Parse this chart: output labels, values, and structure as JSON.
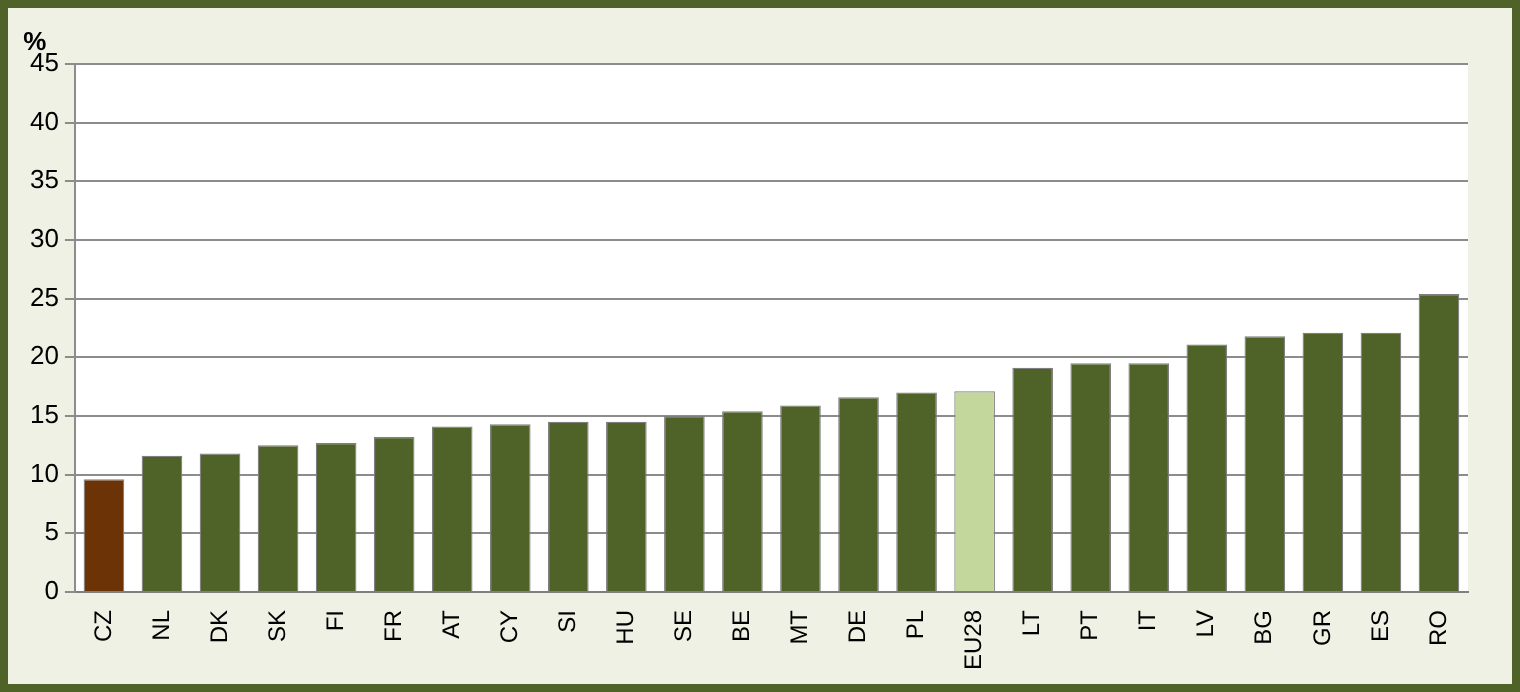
{
  "chart_data": {
    "type": "bar",
    "ylabel": "%",
    "categories": [
      "CZ",
      "NL",
      "DK",
      "SK",
      "FI",
      "FR",
      "AT",
      "CY",
      "SI",
      "HU",
      "SE",
      "BE",
      "MT",
      "DE",
      "PL",
      "EU28",
      "LT",
      "PT",
      "IT",
      "LV",
      "BG",
      "GR",
      "ES",
      "RO"
    ],
    "values": [
      9.6,
      11.6,
      11.8,
      12.5,
      12.7,
      13.2,
      14.1,
      14.3,
      14.5,
      14.5,
      15.0,
      15.4,
      15.9,
      16.6,
      17.0,
      17.1,
      19.1,
      19.5,
      19.5,
      21.1,
      21.8,
      22.1,
      22.1,
      25.4
    ],
    "colors": [
      "#6b3306",
      "#4f6228",
      "#4f6228",
      "#4f6228",
      "#4f6228",
      "#4f6228",
      "#4f6228",
      "#4f6228",
      "#4f6228",
      "#4f6228",
      "#4f6228",
      "#4f6228",
      "#4f6228",
      "#4f6228",
      "#4f6228",
      "#c3d69b",
      "#4f6228",
      "#4f6228",
      "#4f6228",
      "#4f6228",
      "#4f6228",
      "#4f6228",
      "#4f6228",
      "#4f6228"
    ],
    "ylim": [
      0,
      45
    ],
    "yticks": [
      0,
      5,
      10,
      15,
      20,
      25,
      30,
      35,
      40,
      45
    ],
    "grid": "y",
    "legend": false
  }
}
